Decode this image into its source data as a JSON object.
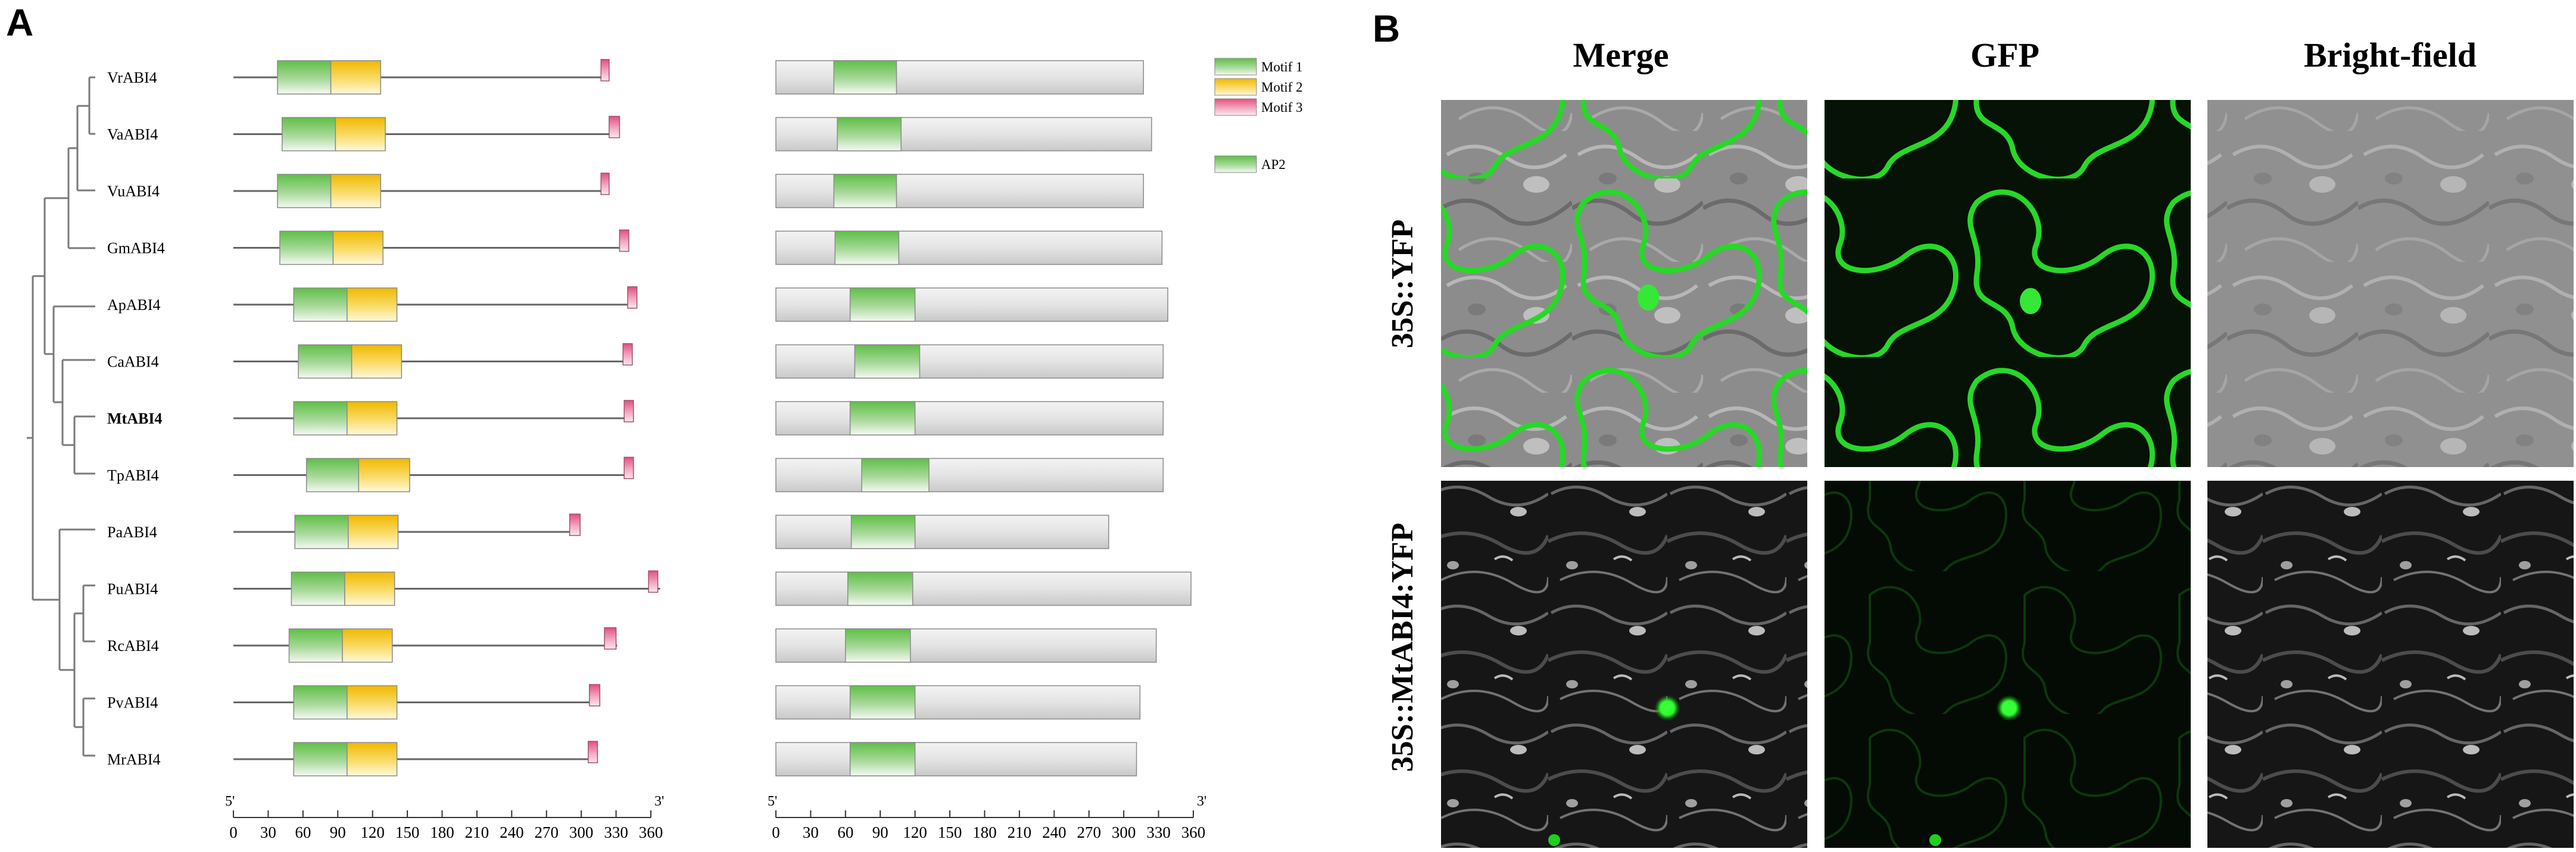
{
  "panel_a": {
    "label": "A",
    "genes": [
      {
        "name": "VrABI4",
        "bold": false,
        "gene": {
          "m1": [
            38,
            84
          ],
          "m2": [
            84,
            127
          ],
          "m3": [
            317,
            324
          ],
          "end": 323
        },
        "protein": {
          "ap2": [
            50,
            104
          ],
          "end": 317
        }
      },
      {
        "name": "VaABI4",
        "bold": false,
        "gene": {
          "m1": [
            42,
            88
          ],
          "m2": [
            88,
            131
          ],
          "m3": [
            324,
            333
          ],
          "end": 333
        },
        "protein": {
          "ap2": [
            53,
            108
          ],
          "end": 324
        }
      },
      {
        "name": "VuABI4",
        "bold": false,
        "gene": {
          "m1": [
            38,
            84
          ],
          "m2": [
            84,
            127
          ],
          "m3": [
            317,
            324
          ],
          "end": 324
        },
        "protein": {
          "ap2": [
            50,
            104
          ],
          "end": 317
        }
      },
      {
        "name": "GmABI4",
        "bold": false,
        "gene": {
          "m1": [
            40,
            86
          ],
          "m2": [
            86,
            129
          ],
          "m3": [
            333,
            341
          ],
          "end": 341
        },
        "protein": {
          "ap2": [
            51,
            106
          ],
          "end": 333
        }
      },
      {
        "name": "ApABI4",
        "bold": false,
        "gene": {
          "m1": [
            52,
            98
          ],
          "m2": [
            98,
            141
          ],
          "m3": [
            340,
            348
          ],
          "end": 348
        },
        "protein": {
          "ap2": [
            64,
            120
          ],
          "end": 338
        }
      },
      {
        "name": "CaABI4",
        "bold": false,
        "gene": {
          "m1": [
            56,
            102
          ],
          "m2": [
            102,
            145
          ],
          "m3": [
            336,
            344
          ],
          "end": 344
        },
        "protein": {
          "ap2": [
            68,
            124
          ],
          "end": 334
        }
      },
      {
        "name": "MtABI4",
        "bold": true,
        "gene": {
          "m1": [
            52,
            98
          ],
          "m2": [
            98,
            141
          ],
          "m3": [
            337,
            345
          ],
          "end": 345
        },
        "protein": {
          "ap2": [
            64,
            120
          ],
          "end": 334
        }
      },
      {
        "name": "TpABI4",
        "bold": false,
        "gene": {
          "m1": [
            63,
            108
          ],
          "m2": [
            108,
            152
          ],
          "m3": [
            337,
            345
          ],
          "end": 345
        },
        "protein": {
          "ap2": [
            74,
            132
          ],
          "end": 334
        }
      },
      {
        "name": "PaABI4",
        "bold": false,
        "gene": {
          "m1": [
            53,
            99
          ],
          "m2": [
            99,
            142
          ],
          "m3": [
            290,
            299
          ],
          "end": 299
        },
        "protein": {
          "ap2": [
            65,
            120
          ],
          "end": 287
        }
      },
      {
        "name": "PuABI4",
        "bold": false,
        "gene": {
          "m1": [
            50,
            96
          ],
          "m2": [
            96,
            139
          ],
          "m3": [
            358,
            366
          ],
          "end": 368
        },
        "protein": {
          "ap2": [
            62,
            118
          ],
          "end": 358
        }
      },
      {
        "name": "RcABI4",
        "bold": false,
        "gene": {
          "m1": [
            48,
            94
          ],
          "m2": [
            94,
            137
          ],
          "m3": [
            320,
            330
          ],
          "end": 331
        },
        "protein": {
          "ap2": [
            60,
            116
          ],
          "end": 328
        }
      },
      {
        "name": "PvABI4",
        "bold": false,
        "gene": {
          "m1": [
            52,
            98
          ],
          "m2": [
            98,
            141
          ],
          "m3": [
            307,
            316
          ],
          "end": 315
        },
        "protein": {
          "ap2": [
            64,
            120
          ],
          "end": 314
        }
      },
      {
        "name": "MrABI4",
        "bold": false,
        "gene": {
          "m1": [
            52,
            98
          ],
          "m2": [
            98,
            141
          ],
          "m3": [
            306,
            314
          ],
          "end": 314
        },
        "protein": {
          "ap2": [
            64,
            120
          ],
          "end": 311
        }
      }
    ],
    "legend": {
      "motif1": "Motif 1",
      "motif2": "Motif 2",
      "motif3": "Motif 3",
      "ap2": "AP2"
    },
    "axis": {
      "ticks": [
        0,
        30,
        60,
        90,
        120,
        150,
        180,
        210,
        240,
        270,
        300,
        330,
        360
      ],
      "start_label": "5'",
      "end_label": "3'"
    },
    "colors": {
      "motif1": "#5cc24a",
      "motif2": "#f2c300",
      "motif3": "#e86b8f",
      "ap2": "#5cc24a",
      "protein": "#cfcfcf",
      "line": "#666666"
    }
  },
  "panel_b": {
    "label": "B",
    "columns": [
      "Merge",
      "GFP",
      "Bright-field"
    ],
    "rows": [
      "35S::YFP",
      "35S::MtABI4:YFP"
    ]
  }
}
